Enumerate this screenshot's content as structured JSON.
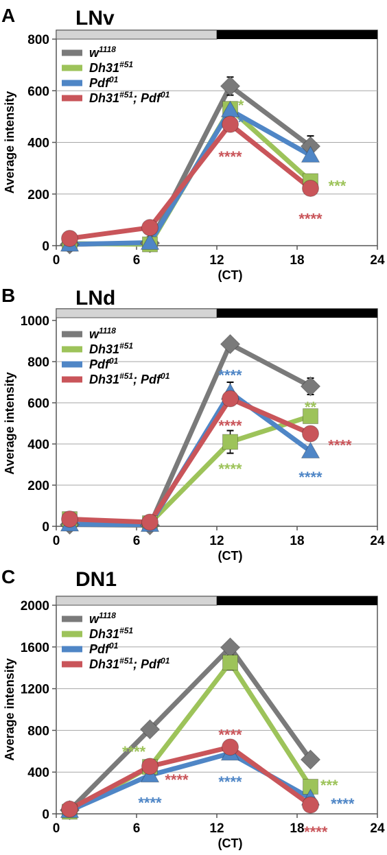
{
  "xlabel": "(CT)",
  "ylabel": "Average intensity",
  "colors": {
    "w1118": "#7a7a7a",
    "dh31": "#9dc35a",
    "pdf": "#4f86c6",
    "double": "#c9555a",
    "light_bar": "#d4d4d4",
    "dark_bar": "#000000",
    "grid": "#a6a6a6"
  },
  "legend": [
    {
      "key": "w1118",
      "base": "w",
      "sup": "1118"
    },
    {
      "key": "dh31",
      "base": "Dh31",
      "sup": "#51"
    },
    {
      "key": "pdf",
      "base": "Pdf",
      "sup": "01"
    },
    {
      "key": "double",
      "base": "Dh31",
      "sup": "#51",
      "base2": "; Pdf",
      "sup2": "01"
    }
  ],
  "chart_data": [
    {
      "letter": "A",
      "type": "line",
      "title": "LNv",
      "x": [
        1,
        7,
        13,
        19
      ],
      "xlim": [
        0,
        24
      ],
      "xticks": [
        "0",
        "6",
        "12",
        "18",
        "24"
      ],
      "ylim": [
        0,
        800
      ],
      "yticks": [
        "0",
        "200",
        "400",
        "600",
        "800"
      ],
      "light_dark_bar": {
        "light": [
          0,
          12
        ],
        "dark": [
          12,
          24
        ]
      },
      "series": [
        {
          "key": "w1118",
          "marker": "diamond",
          "values": [
            5,
            10,
            618,
            385
          ],
          "errors": [
            0,
            0,
            35,
            40
          ]
        },
        {
          "key": "dh31",
          "marker": "square",
          "values": [
            8,
            5,
            530,
            250
          ],
          "errors": [
            0,
            0,
            0,
            0
          ]
        },
        {
          "key": "pdf",
          "marker": "triangle",
          "values": [
            5,
            12,
            525,
            350
          ],
          "errors": [
            0,
            0,
            0,
            0
          ]
        },
        {
          "key": "double",
          "marker": "circle",
          "values": [
            28,
            70,
            470,
            222
          ],
          "errors": [
            0,
            0,
            0,
            0
          ]
        }
      ],
      "annotations": [
        {
          "text": "*",
          "key": "dh31",
          "x": 13.8,
          "y": 545
        },
        {
          "text": "*",
          "key": "pdf",
          "x": 13.8,
          "y": 480
        },
        {
          "text": "****",
          "key": "double",
          "x": 13,
          "y": 345
        },
        {
          "text": "***",
          "key": "dh31",
          "x": 21.0,
          "y": 232
        },
        {
          "text": "****",
          "key": "double",
          "x": 19,
          "y": 105
        }
      ]
    },
    {
      "letter": "B",
      "type": "line",
      "title": "LNd",
      "x": [
        1,
        7,
        13,
        19
      ],
      "xlim": [
        0,
        24
      ],
      "xticks": [
        "0",
        "6",
        "12",
        "18",
        "24"
      ],
      "ylim": [
        0,
        1000
      ],
      "yticks": [
        "0",
        "200",
        "400",
        "600",
        "800",
        "1000"
      ],
      "light_dark_bar": {
        "light": [
          0,
          12
        ],
        "dark": [
          12,
          24
        ]
      },
      "series": [
        {
          "key": "w1118",
          "marker": "diamond",
          "values": [
            8,
            5,
            885,
            680
          ],
          "errors": [
            0,
            0,
            0,
            40
          ]
        },
        {
          "key": "dh31",
          "marker": "square",
          "values": [
            35,
            15,
            410,
            535
          ],
          "errors": [
            0,
            0,
            55,
            0
          ]
        },
        {
          "key": "pdf",
          "marker": "triangle",
          "values": [
            10,
            8,
            650,
            365
          ],
          "errors": [
            0,
            0,
            50,
            0
          ]
        },
        {
          "key": "double",
          "marker": "circle",
          "values": [
            35,
            20,
            620,
            450
          ],
          "errors": [
            0,
            0,
            0,
            0
          ]
        }
      ],
      "annotations": [
        {
          "text": "****",
          "key": "pdf",
          "x": 13,
          "y": 735
        },
        {
          "text": "****",
          "key": "double",
          "x": 13,
          "y": 490
        },
        {
          "text": "****",
          "key": "dh31",
          "x": 13,
          "y": 280
        },
        {
          "text": "**",
          "key": "dh31",
          "x": 19,
          "y": 580
        },
        {
          "text": "****",
          "key": "double",
          "x": 21.2,
          "y": 395
        },
        {
          "text": "****",
          "key": "pdf",
          "x": 19,
          "y": 240
        }
      ]
    },
    {
      "letter": "C",
      "type": "line",
      "title": "DN1",
      "x": [
        1,
        7,
        13,
        19
      ],
      "xlim": [
        0,
        24
      ],
      "xticks": [
        "0",
        "6",
        "12",
        "18",
        "24"
      ],
      "ylim": [
        0,
        2000
      ],
      "yticks": [
        "0",
        "400",
        "800",
        "1200",
        "1600",
        "2000"
      ],
      "light_dark_bar": {
        "light": [
          0,
          12
        ],
        "dark": [
          12,
          24
        ]
      },
      "series": [
        {
          "key": "w1118",
          "marker": "diamond",
          "values": [
            35,
            810,
            1595,
            520
          ],
          "errors": [
            0,
            0,
            0,
            0
          ]
        },
        {
          "key": "dh31",
          "marker": "square",
          "values": [
            20,
            450,
            1450,
            260
          ],
          "errors": [
            0,
            0,
            70,
            0
          ]
        },
        {
          "key": "pdf",
          "marker": "triangle",
          "values": [
            30,
            370,
            580,
            150
          ],
          "errors": [
            0,
            0,
            0,
            0
          ]
        },
        {
          "key": "double",
          "marker": "circle",
          "values": [
            45,
            455,
            640,
            85
          ],
          "errors": [
            0,
            0,
            0,
            0
          ]
        }
      ],
      "annotations": [
        {
          "text": "****",
          "key": "dh31",
          "x": 5.8,
          "y": 600
        },
        {
          "text": "****",
          "key": "double",
          "x": 9.0,
          "y": 330
        },
        {
          "text": "****",
          "key": "pdf",
          "x": 7,
          "y": 110
        },
        {
          "text": "****",
          "key": "double",
          "x": 13,
          "y": 760
        },
        {
          "text": "****",
          "key": "pdf",
          "x": 13,
          "y": 310
        },
        {
          "text": "***",
          "key": "dh31",
          "x": 20.4,
          "y": 275
        },
        {
          "text": "****",
          "key": "pdf",
          "x": 21.4,
          "y": 100
        },
        {
          "text": "****",
          "key": "double",
          "x": 19.4,
          "y": -170
        }
      ]
    }
  ]
}
